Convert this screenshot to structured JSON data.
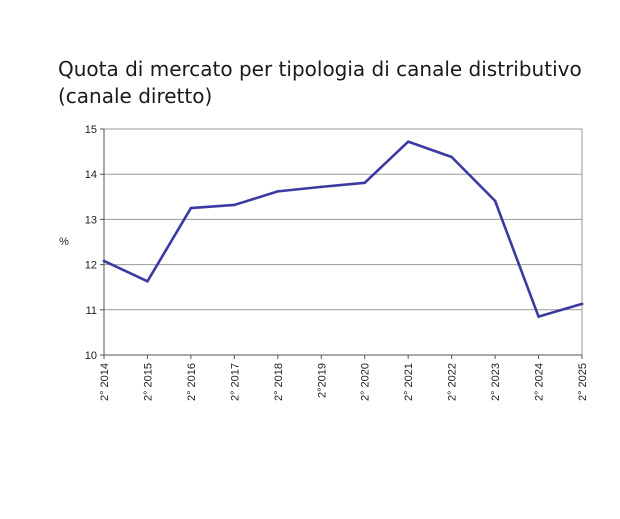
{
  "chart_data": {
    "type": "line",
    "title_lines": [
      "Quota di mercato per tipologia di canale distributivo",
      "(canale diretto)"
    ],
    "xlabel": "",
    "ylabel": "%",
    "categories": [
      "2° 2014",
      "2° 2015",
      "2° 2016",
      "2° 2017",
      "2° 2018",
      "2°2019",
      "2° 2020",
      "2° 2021",
      "2° 2022",
      "2° 2023",
      "2° 2024",
      "2° 2025"
    ],
    "yticks": [
      "10",
      "11",
      "12",
      "13",
      "14",
      "15"
    ],
    "ylim": [
      10,
      15
    ],
    "grid": true,
    "legend": "none",
    "series": [
      {
        "color": "#3a3aa0",
        "values": [
          12.08,
          11.63,
          13.25,
          13.32,
          13.62,
          13.72,
          13.81,
          14.72,
          14.38,
          13.41,
          10.85,
          11.13
        ]
      }
    ]
  }
}
